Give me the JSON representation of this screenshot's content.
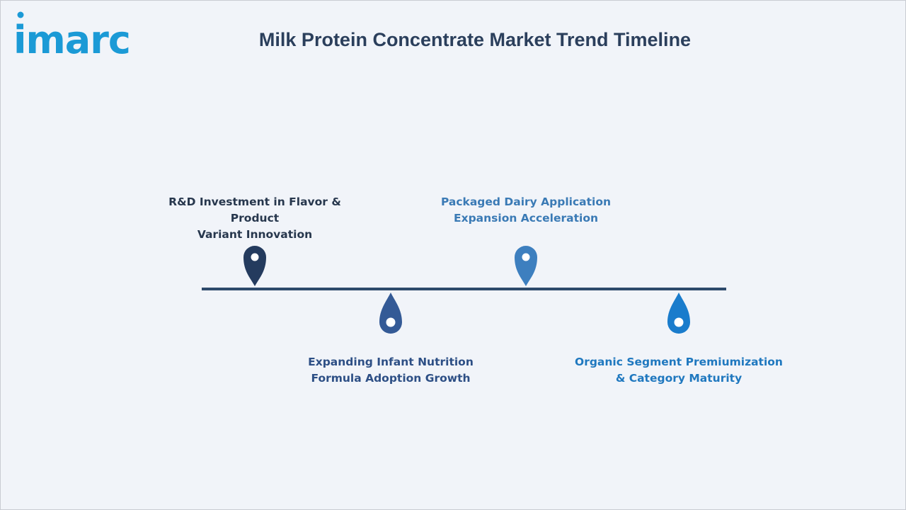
{
  "brand": {
    "logo_text": "imarc",
    "logo_color": "#1b9ad6"
  },
  "header": {
    "title": "Milk Protein Concentrate Market Trend Timeline"
  },
  "timeline": {
    "line_color": "#2d4a6b",
    "milestones": [
      {
        "lines": [
          "R&D Investment in Flavor & Product",
          "Variant Innovation"
        ],
        "position": "above",
        "color": "#243b5e",
        "text_color": "#27374d",
        "icon": "map-pin-icon"
      },
      {
        "lines": [
          "Expanding Infant Nutrition",
          "Formula Adoption Growth"
        ],
        "position": "below",
        "color": "#345a96",
        "text_color": "#2d4f85",
        "icon": "drop-icon"
      },
      {
        "lines": [
          "Packaged Dairy Application",
          "Expansion Acceleration"
        ],
        "position": "above",
        "color": "#3d7fbf",
        "text_color": "#3a7ab5",
        "icon": "map-pin-icon"
      },
      {
        "lines": [
          "Organic Segment Premiumization",
          "& Category Maturity"
        ],
        "position": "below",
        "color": "#1a7ccc",
        "text_color": "#1f78bf",
        "icon": "drop-icon"
      }
    ]
  }
}
